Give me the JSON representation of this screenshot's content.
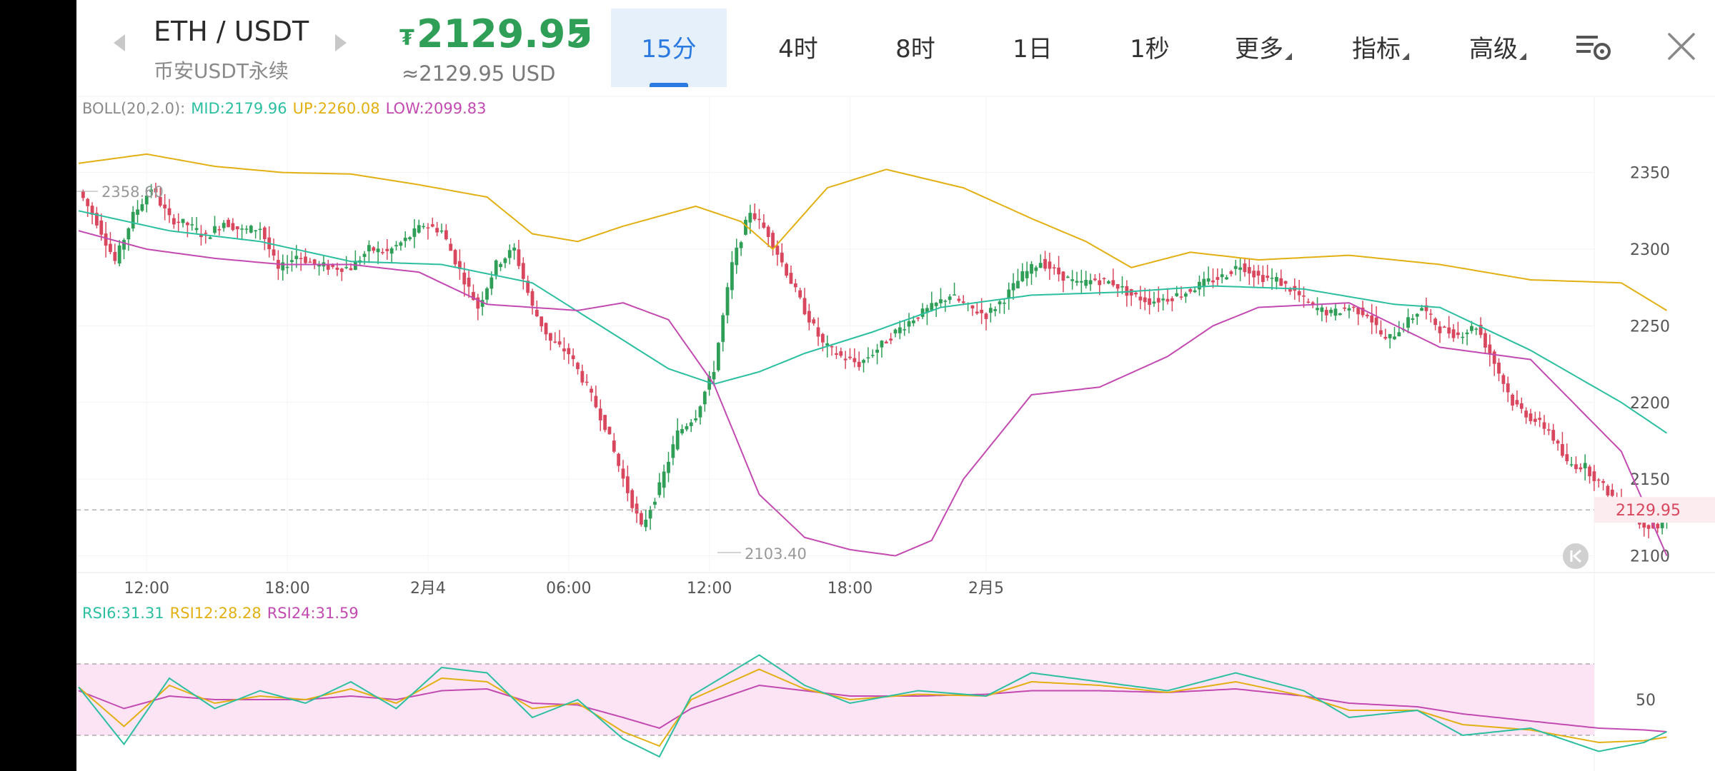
{
  "header": {
    "pair": "ETH / USDT",
    "market": "币安USDT永续",
    "price_symbol": "₮",
    "price": "2129.95",
    "price_usd": "≈2129.95 USD"
  },
  "tabs": [
    {
      "label": "15分",
      "active": true
    },
    {
      "label": "4时"
    },
    {
      "label": "8时"
    },
    {
      "label": "1日"
    },
    {
      "label": "1秒"
    },
    {
      "label": "更多",
      "dropdown": true
    },
    {
      "label": "指标",
      "dropdown": true
    },
    {
      "label": "高级",
      "dropdown": true
    }
  ],
  "icons": {
    "prev": "chevron-left-icon",
    "next": "chevron-right-icon",
    "trend": "trend-up-arrow-icon",
    "settings": "chart-settings-icon",
    "close": "close-icon",
    "scroll_latest": "scroll-to-latest-icon"
  },
  "colors": {
    "up": "#2f9e57",
    "down": "#d8475e",
    "mid": "#2bbfa0",
    "upper": "#e2b012",
    "lower": "#c24ab0",
    "rsi6": "#2bbfa0",
    "rsi12": "#e2b012",
    "rsi24": "#c24ab0",
    "rsi_band": "#fce4f5"
  },
  "boll_legend": {
    "name": "BOLL(20,2.0):",
    "mid": "MID:2179.96",
    "up": "UP:2260.08",
    "low": "LOW:2099.83"
  },
  "rsi_legend": {
    "rsi6": "RSI6:31.31",
    "rsi12": "RSI12:28.28",
    "rsi24": "RSI24:31.59"
  },
  "chart_data": [
    {
      "type": "candlestick",
      "y_ticks": [
        "2350",
        "2300",
        "2250",
        "2200",
        "2150",
        "2100"
      ],
      "x_ticks": [
        "12:00",
        "18:00",
        "2月4",
        "06:00",
        "12:00",
        "18:00",
        "2月5"
      ],
      "ylim": [
        2090,
        2395
      ],
      "last_price": "2129.95",
      "annotations": {
        "high": "2358.60",
        "low": "2103.40"
      },
      "close_anchors": [
        [
          0,
          2338
        ],
        [
          4,
          2318
        ],
        [
          8,
          2292
        ],
        [
          12,
          2322
        ],
        [
          16,
          2340
        ],
        [
          20,
          2320
        ],
        [
          24,
          2316
        ],
        [
          28,
          2308
        ],
        [
          32,
          2318
        ],
        [
          36,
          2312
        ],
        [
          40,
          2314
        ],
        [
          44,
          2286
        ],
        [
          48,
          2296
        ],
        [
          52,
          2290
        ],
        [
          56,
          2288
        ],
        [
          60,
          2288
        ],
        [
          64,
          2300
        ],
        [
          68,
          2298
        ],
        [
          72,
          2306
        ],
        [
          76,
          2316
        ],
        [
          80,
          2312
        ],
        [
          84,
          2286
        ],
        [
          88,
          2262
        ],
        [
          92,
          2290
        ],
        [
          96,
          2300
        ],
        [
          100,
          2262
        ],
        [
          104,
          2240
        ],
        [
          108,
          2232
        ],
        [
          112,
          2210
        ],
        [
          116,
          2185
        ],
        [
          120,
          2150
        ],
        [
          124,
          2118
        ],
        [
          128,
          2145
        ],
        [
          132,
          2180
        ],
        [
          136,
          2192
        ],
        [
          140,
          2222
        ],
        [
          144,
          2290
        ],
        [
          148,
          2325
        ],
        [
          152,
          2310
        ],
        [
          156,
          2285
        ],
        [
          160,
          2260
        ],
        [
          164,
          2238
        ],
        [
          168,
          2230
        ],
        [
          172,
          2225
        ],
        [
          176,
          2235
        ],
        [
          180,
          2246
        ],
        [
          184,
          2255
        ],
        [
          188,
          2262
        ],
        [
          192,
          2270
        ],
        [
          196,
          2262
        ],
        [
          200,
          2257
        ],
        [
          204,
          2268
        ],
        [
          208,
          2283
        ],
        [
          212,
          2292
        ],
        [
          216,
          2284
        ],
        [
          220,
          2277
        ],
        [
          224,
          2280
        ],
        [
          228,
          2278
        ],
        [
          232,
          2270
        ],
        [
          236,
          2266
        ],
        [
          240,
          2268
        ],
        [
          244,
          2272
        ],
        [
          248,
          2278
        ],
        [
          252,
          2282
        ],
        [
          256,
          2290
        ],
        [
          260,
          2282
        ],
        [
          264,
          2280
        ],
        [
          268,
          2272
        ],
        [
          272,
          2262
        ],
        [
          276,
          2258
        ],
        [
          280,
          2262
        ],
        [
          284,
          2258
        ],
        [
          288,
          2240
        ],
        [
          292,
          2250
        ],
        [
          296,
          2262
        ],
        [
          300,
          2248
        ],
        [
          304,
          2244
        ],
        [
          308,
          2250
        ],
        [
          312,
          2226
        ],
        [
          316,
          2200
        ],
        [
          320,
          2190
        ],
        [
          324,
          2182
        ],
        [
          328,
          2160
        ],
        [
          332,
          2158
        ],
        [
          336,
          2145
        ],
        [
          340,
          2132
        ],
        [
          344,
          2122
        ],
        [
          348,
          2118
        ],
        [
          350,
          2130
        ]
      ],
      "mid_anchors": [
        [
          0,
          2325
        ],
        [
          20,
          2312
        ],
        [
          40,
          2305
        ],
        [
          60,
          2292
        ],
        [
          80,
          2290
        ],
        [
          100,
          2278
        ],
        [
          115,
          2250
        ],
        [
          130,
          2222
        ],
        [
          140,
          2212
        ],
        [
          150,
          2220
        ],
        [
          160,
          2232
        ],
        [
          175,
          2246
        ],
        [
          190,
          2262
        ],
        [
          210,
          2270
        ],
        [
          230,
          2272
        ],
        [
          250,
          2276
        ],
        [
          270,
          2274
        ],
        [
          290,
          2264
        ],
        [
          300,
          2262
        ],
        [
          320,
          2234
        ],
        [
          340,
          2200
        ],
        [
          350,
          2180
        ]
      ],
      "upper_anchors": [
        [
          0,
          2356
        ],
        [
          15,
          2362
        ],
        [
          30,
          2354
        ],
        [
          45,
          2350
        ],
        [
          60,
          2349
        ],
        [
          75,
          2342
        ],
        [
          90,
          2334
        ],
        [
          100,
          2310
        ],
        [
          110,
          2305
        ],
        [
          120,
          2315
        ],
        [
          136,
          2328
        ],
        [
          146,
          2318
        ],
        [
          153,
          2300
        ],
        [
          165,
          2340
        ],
        [
          178,
          2352
        ],
        [
          195,
          2340
        ],
        [
          210,
          2320
        ],
        [
          222,
          2305
        ],
        [
          232,
          2288
        ],
        [
          245,
          2298
        ],
        [
          260,
          2293
        ],
        [
          280,
          2296
        ],
        [
          300,
          2290
        ],
        [
          320,
          2280
        ],
        [
          340,
          2278
        ],
        [
          350,
          2260
        ]
      ],
      "lower_anchors": [
        [
          0,
          2312
        ],
        [
          15,
          2300
        ],
        [
          30,
          2294
        ],
        [
          45,
          2290
        ],
        [
          60,
          2290
        ],
        [
          75,
          2285
        ],
        [
          90,
          2264
        ],
        [
          100,
          2262
        ],
        [
          110,
          2260
        ],
        [
          120,
          2265
        ],
        [
          130,
          2254
        ],
        [
          140,
          2212
        ],
        [
          150,
          2140
        ],
        [
          160,
          2112
        ],
        [
          170,
          2104
        ],
        [
          180,
          2100
        ],
        [
          188,
          2110
        ],
        [
          195,
          2150
        ],
        [
          210,
          2205
        ],
        [
          225,
          2210
        ],
        [
          240,
          2230
        ],
        [
          250,
          2250
        ],
        [
          260,
          2262
        ],
        [
          280,
          2265
        ],
        [
          300,
          2236
        ],
        [
          320,
          2228
        ],
        [
          340,
          2168
        ],
        [
          350,
          2100
        ]
      ]
    },
    {
      "type": "line",
      "indicator": "RSI",
      "y_ticks": [
        "50"
      ],
      "band": [
        30,
        70
      ],
      "ylim": [
        10,
        90
      ],
      "rsi6_anchors": [
        [
          0,
          57
        ],
        [
          10,
          25
        ],
        [
          20,
          62
        ],
        [
          30,
          45
        ],
        [
          40,
          55
        ],
        [
          50,
          48
        ],
        [
          60,
          60
        ],
        [
          70,
          45
        ],
        [
          80,
          68
        ],
        [
          90,
          65
        ],
        [
          100,
          40
        ],
        [
          110,
          50
        ],
        [
          120,
          28
        ],
        [
          128,
          18
        ],
        [
          135,
          52
        ],
        [
          150,
          75
        ],
        [
          160,
          58
        ],
        [
          170,
          48
        ],
        [
          185,
          55
        ],
        [
          200,
          52
        ],
        [
          210,
          65
        ],
        [
          225,
          60
        ],
        [
          240,
          55
        ],
        [
          255,
          65
        ],
        [
          270,
          55
        ],
        [
          280,
          40
        ],
        [
          295,
          44
        ],
        [
          305,
          30
        ],
        [
          320,
          34
        ],
        [
          335,
          21
        ],
        [
          345,
          26
        ],
        [
          350,
          32
        ]
      ],
      "rsi12_anchors": [
        [
          0,
          57
        ],
        [
          10,
          35
        ],
        [
          20,
          58
        ],
        [
          30,
          48
        ],
        [
          40,
          52
        ],
        [
          50,
          50
        ],
        [
          60,
          56
        ],
        [
          70,
          48
        ],
        [
          80,
          62
        ],
        [
          90,
          60
        ],
        [
          100,
          45
        ],
        [
          110,
          48
        ],
        [
          120,
          32
        ],
        [
          128,
          24
        ],
        [
          135,
          50
        ],
        [
          150,
          67
        ],
        [
          160,
          56
        ],
        [
          170,
          50
        ],
        [
          185,
          53
        ],
        [
          200,
          52
        ],
        [
          210,
          60
        ],
        [
          225,
          58
        ],
        [
          240,
          54
        ],
        [
          255,
          60
        ],
        [
          270,
          52
        ],
        [
          280,
          44
        ],
        [
          295,
          44
        ],
        [
          305,
          36
        ],
        [
          320,
          33
        ],
        [
          335,
          26
        ],
        [
          345,
          27
        ],
        [
          350,
          29
        ]
      ],
      "rsi24_anchors": [
        [
          0,
          55
        ],
        [
          10,
          45
        ],
        [
          20,
          52
        ],
        [
          30,
          50
        ],
        [
          40,
          50
        ],
        [
          50,
          50
        ],
        [
          60,
          52
        ],
        [
          70,
          50
        ],
        [
          80,
          55
        ],
        [
          90,
          56
        ],
        [
          100,
          48
        ],
        [
          110,
          47
        ],
        [
          120,
          40
        ],
        [
          128,
          34
        ],
        [
          135,
          45
        ],
        [
          150,
          58
        ],
        [
          160,
          55
        ],
        [
          170,
          52
        ],
        [
          185,
          52
        ],
        [
          200,
          53
        ],
        [
          210,
          55
        ],
        [
          225,
          55
        ],
        [
          240,
          54
        ],
        [
          255,
          56
        ],
        [
          270,
          52
        ],
        [
          280,
          48
        ],
        [
          295,
          46
        ],
        [
          305,
          42
        ],
        [
          320,
          38
        ],
        [
          335,
          34
        ],
        [
          345,
          33
        ],
        [
          350,
          32
        ]
      ]
    }
  ]
}
